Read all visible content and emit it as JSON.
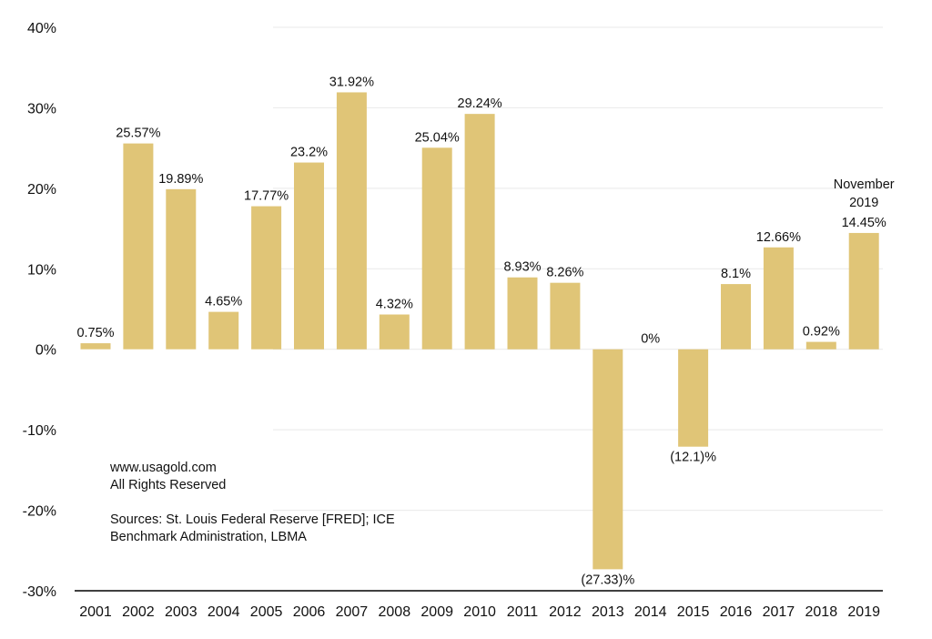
{
  "chart_data": {
    "type": "bar",
    "title": "",
    "xlabel": "",
    "ylabel": "",
    "ylim": [
      -30,
      40
    ],
    "yticks": [
      40,
      30,
      20,
      10,
      0,
      -10,
      -20,
      -30
    ],
    "ytick_labels": [
      "40%",
      "30%",
      "20%",
      "10%",
      "0%",
      "-10%",
      "-20%",
      "-30%"
    ],
    "categories": [
      "2001",
      "2002",
      "2003",
      "2004",
      "2005",
      "2006",
      "2007",
      "2008",
      "2009",
      "2010",
      "2011",
      "2012",
      "2013",
      "2014",
      "2015",
      "2016",
      "2017",
      "2018",
      "2019"
    ],
    "values": [
      0.75,
      25.57,
      19.89,
      4.65,
      17.77,
      23.2,
      31.92,
      4.32,
      25.04,
      29.24,
      8.93,
      8.26,
      -27.33,
      0,
      -12.1,
      8.1,
      12.66,
      0.92,
      14.45
    ],
    "labels": [
      "0.75%",
      "25.57%",
      "19.89%",
      "4.65%",
      "17.77%",
      "23.2%",
      "31.92%",
      "4.32%",
      "25.04%",
      "29.24%",
      "8.93%",
      "8.26%",
      "(27.33)%",
      "0%",
      "(12.1)%",
      "8.1%",
      "12.66%",
      "0.92%",
      "14.45%"
    ],
    "annotation": {
      "category": "2019",
      "lines": [
        "November",
        "2019"
      ]
    },
    "bar_color": "#e0c577",
    "grid": true
  },
  "notes": {
    "website": "www.usagold.com",
    "rights": "All Rights Reserved",
    "sources_line1": "Sources:  St. Louis Federal Reserve [FRED]; ICE",
    "sources_line2": "Benchmark Administration, LBMA"
  }
}
